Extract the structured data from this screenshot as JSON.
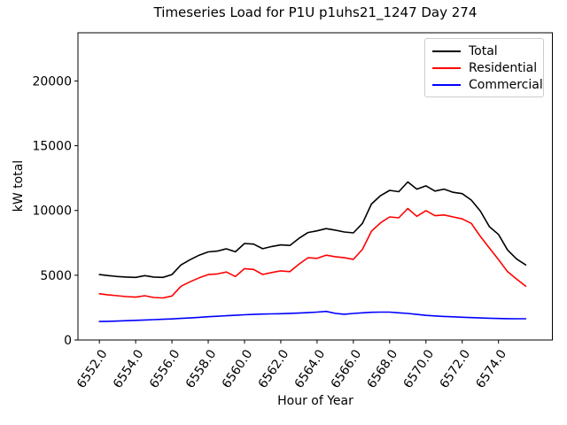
{
  "chart_data": {
    "type": "line",
    "title": "Timeseries Load for P1U p1uhs21_1247  Day 274",
    "xlabel": "Hour of Year",
    "ylabel": "kW total",
    "xlim": [
      6550.82,
      6576.97
    ],
    "ylim": [
      0,
      23720
    ],
    "xticks": [
      6552,
      6554,
      6556,
      6558,
      6560,
      6562,
      6564,
      6566,
      6568,
      6570,
      6572,
      6574
    ],
    "xtick_labels": [
      "6552.0",
      "6554.0",
      "6556.0",
      "6558.0",
      "6560.0",
      "6562.0",
      "6564.0",
      "6566.0",
      "6568.0",
      "6570.0",
      "6572.0",
      "6574.0"
    ],
    "yticks": [
      0,
      5000,
      10000,
      15000,
      20000
    ],
    "ytick_labels": [
      "0",
      "5000",
      "10000",
      "15000",
      "20000"
    ],
    "grid": false,
    "legend_position": "upper right",
    "x": [
      6552.0,
      6552.5,
      6553.0,
      6553.5,
      6554.0,
      6554.5,
      6555.0,
      6555.5,
      6556.0,
      6556.5,
      6557.0,
      6557.5,
      6558.0,
      6558.5,
      6559.0,
      6559.5,
      6560.0,
      6560.5,
      6561.0,
      6561.5,
      6562.0,
      6562.5,
      6563.0,
      6563.5,
      6564.0,
      6564.5,
      6565.0,
      6565.5,
      6566.0,
      6566.5,
      6567.0,
      6567.5,
      6568.0,
      6568.5,
      6569.0,
      6569.5,
      6570.0,
      6570.5,
      6571.0,
      6571.5,
      6572.0,
      6572.5,
      6573.0,
      6573.5,
      6574.0,
      6574.5,
      6575.0,
      6575.5
    ],
    "series": [
      {
        "name": "Total",
        "color": "#000000",
        "values": [
          5050,
          4970,
          4900,
          4860,
          4830,
          4970,
          4860,
          4830,
          5050,
          5800,
          6200,
          6550,
          6800,
          6860,
          7040,
          6810,
          7450,
          7400,
          7050,
          7220,
          7340,
          7300,
          7850,
          8300,
          8430,
          8600,
          8480,
          8340,
          8270,
          9000,
          10500,
          11150,
          11550,
          11450,
          12200,
          11650,
          11900,
          11500,
          11650,
          11400,
          11300,
          10800,
          9950,
          8750,
          8150,
          6950,
          6250,
          5800
        ]
      },
      {
        "name": "Residential",
        "color": "#ff0000",
        "values": [
          3570,
          3480,
          3420,
          3350,
          3310,
          3420,
          3280,
          3250,
          3400,
          4150,
          4500,
          4800,
          5050,
          5100,
          5250,
          4900,
          5510,
          5450,
          5060,
          5210,
          5340,
          5280,
          5850,
          6350,
          6300,
          6550,
          6430,
          6350,
          6230,
          7000,
          8400,
          9050,
          9500,
          9430,
          10150,
          9550,
          9990,
          9600,
          9650,
          9500,
          9350,
          9000,
          8000,
          7100,
          6200,
          5280,
          4700,
          4150
        ]
      },
      {
        "name": "Commercial",
        "color": "#0000ff",
        "values": [
          1430,
          1445,
          1460,
          1490,
          1520,
          1545,
          1570,
          1600,
          1630,
          1665,
          1700,
          1750,
          1800,
          1835,
          1870,
          1910,
          1950,
          1975,
          2000,
          2015,
          2030,
          2055,
          2080,
          2115,
          2150,
          2210,
          2060,
          1990,
          2050,
          2100,
          2140,
          2150,
          2150,
          2100,
          2050,
          1975,
          1900,
          1860,
          1820,
          1790,
          1760,
          1730,
          1700,
          1680,
          1660,
          1650,
          1640,
          1640
        ]
      }
    ]
  }
}
